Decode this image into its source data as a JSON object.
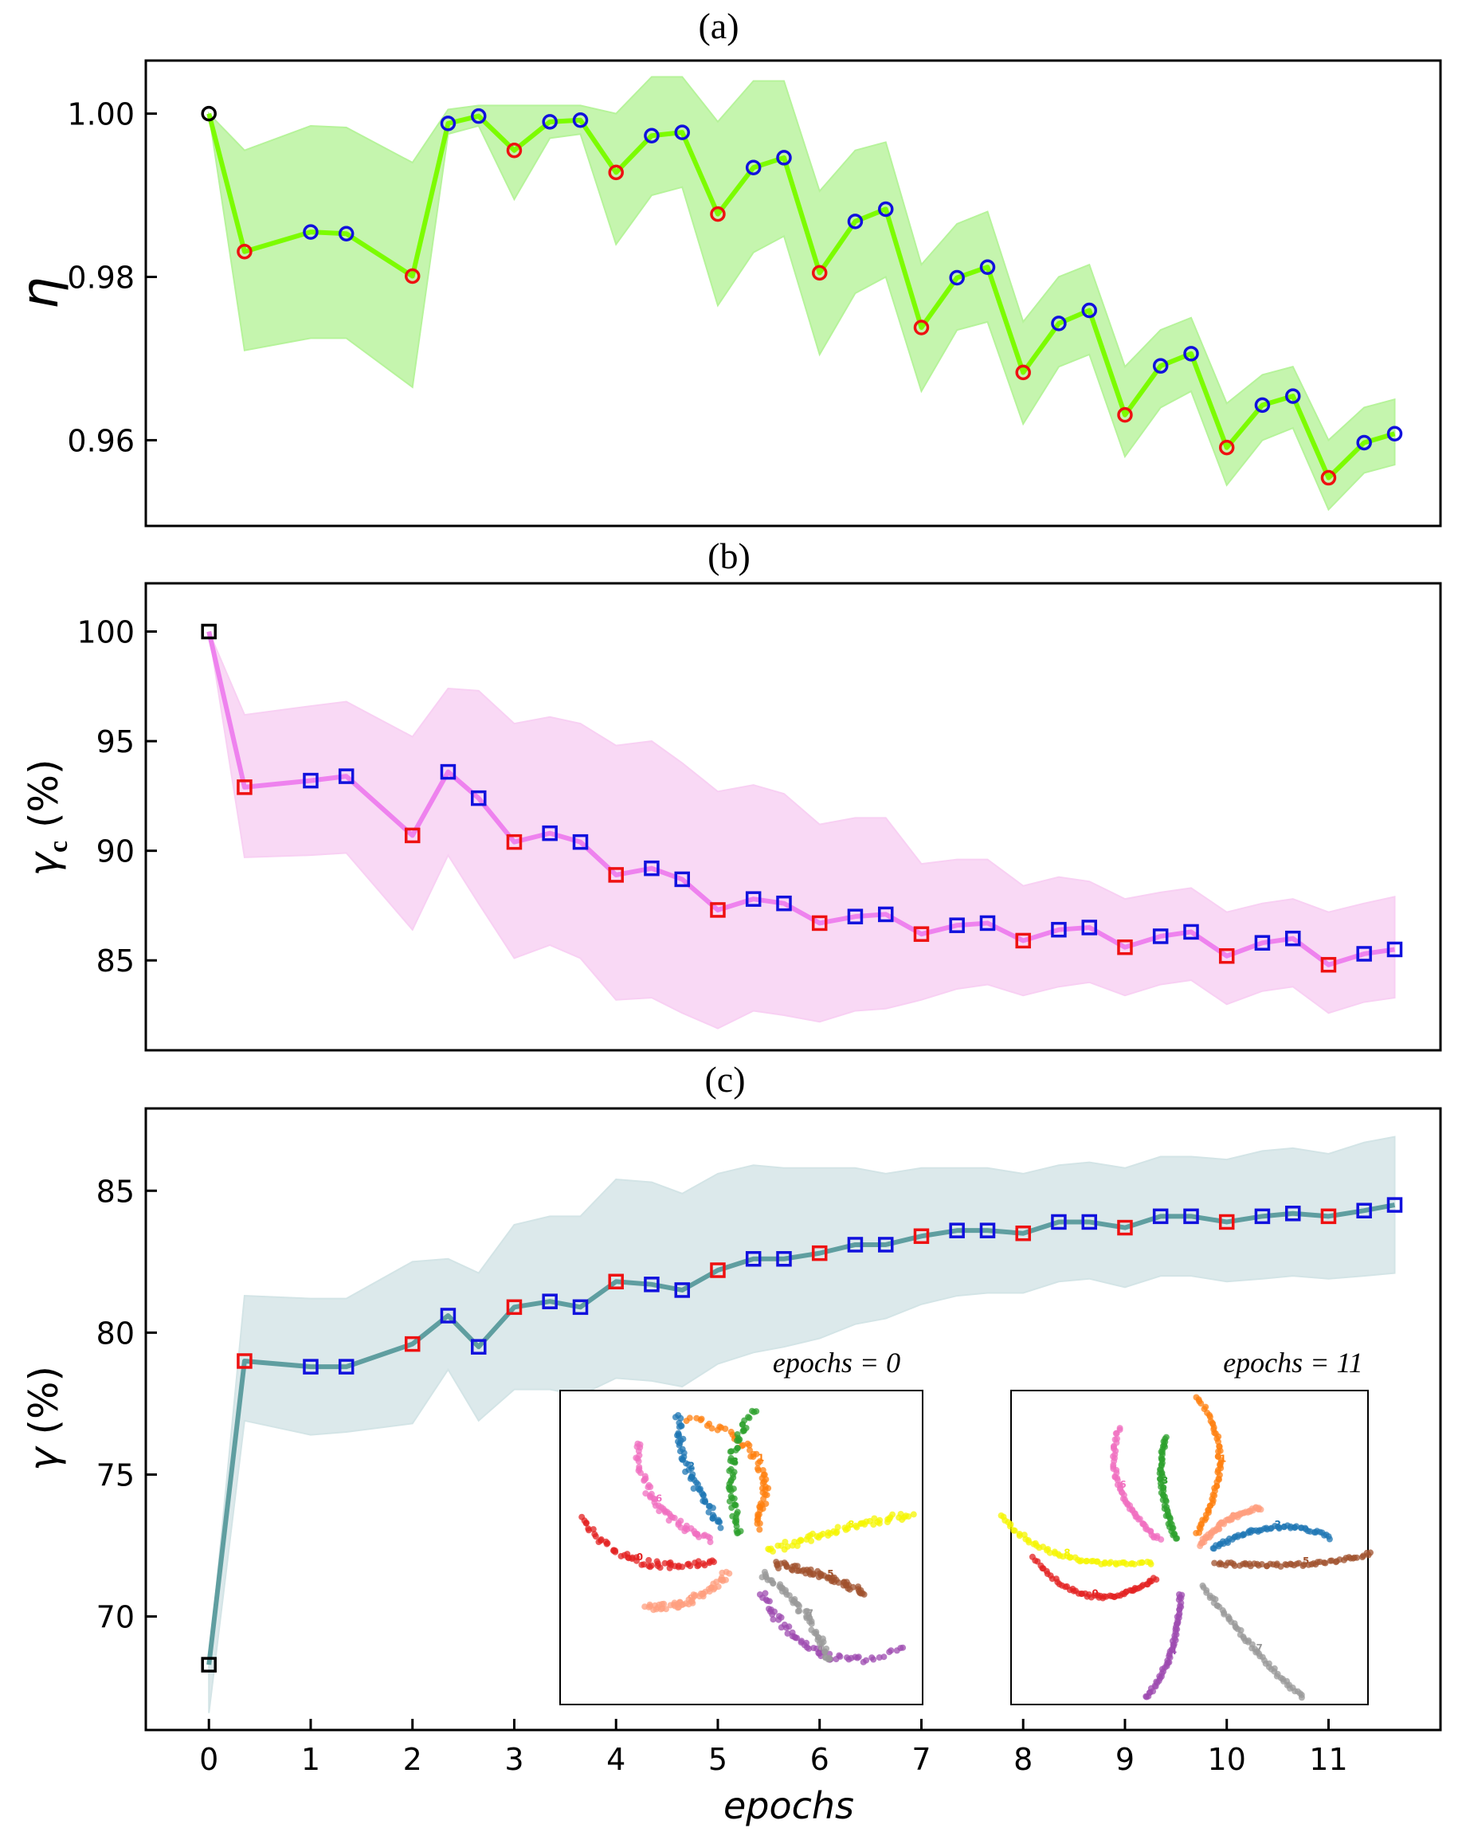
{
  "chart_data": [
    {
      "type": "line",
      "panel": "(a)",
      "ylabel": "η",
      "ylim": [
        0.9495,
        1.0065
      ],
      "yticks": [
        "0.96",
        "0.98",
        "1.00"
      ],
      "ytick_values": [
        0.96,
        0.98,
        1.0
      ],
      "line_color": "#7cfc00",
      "band_color": "#b6f39a",
      "x": [
        0,
        0.35,
        1.0,
        1.35,
        2.0,
        2.35,
        2.65,
        3.0,
        3.35,
        3.65,
        4.0,
        4.35,
        4.65,
        5.0,
        5.35,
        5.65,
        6.0,
        6.35,
        6.65,
        7.0,
        7.35,
        7.65,
        8.0,
        8.35,
        8.65,
        9.0,
        9.35,
        9.65,
        10.0,
        10.35,
        10.65,
        11.0,
        11.35,
        11.65
      ],
      "values": [
        1.0,
        0.9831,
        0.9855,
        0.9853,
        0.9801,
        0.9988,
        0.9997,
        0.9955,
        0.999,
        0.9992,
        0.9928,
        0.9973,
        0.9977,
        0.9877,
        0.9934,
        0.9946,
        0.9805,
        0.9868,
        0.9883,
        0.9738,
        0.9799,
        0.9812,
        0.9683,
        0.9743,
        0.9759,
        0.9631,
        0.9691,
        0.9706,
        0.9591,
        0.9643,
        0.9654,
        0.9554,
        0.9597,
        0.9608
      ],
      "upper": [
        1.0,
        0.9955,
        0.9985,
        0.9983,
        0.994,
        1.0005,
        1.001,
        1.001,
        1.001,
        1.001,
        1.0,
        1.0045,
        1.0045,
        0.999,
        1.004,
        1.004,
        0.9905,
        0.9955,
        0.9965,
        0.9815,
        0.9865,
        0.988,
        0.9745,
        0.98,
        0.9815,
        0.969,
        0.9735,
        0.975,
        0.9645,
        0.968,
        0.969,
        0.96,
        0.964,
        0.965
      ],
      "lower": [
        1.0,
        0.971,
        0.9725,
        0.9725,
        0.9665,
        0.9975,
        0.9985,
        0.9895,
        0.997,
        0.9975,
        0.984,
        0.99,
        0.991,
        0.9765,
        0.983,
        0.985,
        0.9705,
        0.978,
        0.98,
        0.966,
        0.9735,
        0.9745,
        0.962,
        0.969,
        0.9705,
        0.958,
        0.964,
        0.966,
        0.9545,
        0.96,
        0.9615,
        0.9515,
        0.956,
        0.957
      ],
      "marker": "circle",
      "marker_colors": [
        "black",
        "red",
        "blue",
        "blue",
        "red",
        "blue",
        "blue",
        "red",
        "blue",
        "blue",
        "red",
        "blue",
        "blue",
        "red",
        "blue",
        "blue",
        "red",
        "blue",
        "blue",
        "red",
        "blue",
        "blue",
        "red",
        "blue",
        "blue",
        "red",
        "blue",
        "blue",
        "red",
        "blue",
        "blue",
        "red",
        "blue",
        "blue"
      ]
    },
    {
      "type": "line",
      "panel": "(b)",
      "ylabel_main": "γ",
      "ylabel_sub": "c",
      "ylabel_unit": "(%)",
      "ylim": [
        80.9,
        102.2
      ],
      "yticks": [
        "85",
        "90",
        "95",
        "100"
      ],
      "ytick_values": [
        85,
        90,
        95,
        100
      ],
      "line_color": "#ee82ee",
      "band_color": "#f8d0f3",
      "x": [
        0,
        0.35,
        1.0,
        1.35,
        2.0,
        2.35,
        2.65,
        3.0,
        3.35,
        3.65,
        4.0,
        4.35,
        4.65,
        5.0,
        5.35,
        5.65,
        6.0,
        6.35,
        6.65,
        7.0,
        7.35,
        7.65,
        8.0,
        8.35,
        8.65,
        9.0,
        9.35,
        9.65,
        10.0,
        10.35,
        10.65,
        11.0,
        11.35,
        11.65
      ],
      "values": [
        100.0,
        92.9,
        93.2,
        93.4,
        90.7,
        93.6,
        92.4,
        90.4,
        90.8,
        90.4,
        88.9,
        89.2,
        88.7,
        87.3,
        87.8,
        87.6,
        86.7,
        87.0,
        87.1,
        86.2,
        86.6,
        86.7,
        85.9,
        86.4,
        86.5,
        85.6,
        86.1,
        86.3,
        85.2,
        85.8,
        86.0,
        84.8,
        85.3,
        85.5
      ],
      "upper": [
        100.0,
        96.2,
        96.6,
        96.8,
        95.2,
        97.4,
        97.3,
        95.8,
        96.1,
        95.8,
        94.8,
        95.0,
        94.0,
        92.7,
        93.0,
        92.6,
        91.2,
        91.5,
        91.5,
        89.4,
        89.6,
        89.6,
        88.4,
        88.8,
        88.6,
        87.8,
        88.1,
        88.3,
        87.2,
        87.6,
        87.8,
        87.2,
        87.6,
        87.9
      ],
      "lower": [
        100.0,
        89.7,
        89.8,
        89.9,
        86.4,
        89.8,
        87.6,
        85.1,
        85.7,
        85.1,
        83.2,
        83.3,
        82.6,
        81.9,
        82.7,
        82.5,
        82.2,
        82.7,
        82.8,
        83.2,
        83.7,
        83.9,
        83.4,
        83.8,
        84.0,
        83.4,
        83.9,
        84.1,
        83.0,
        83.6,
        83.8,
        82.6,
        83.1,
        83.3
      ],
      "marker": "square",
      "marker_colors": [
        "black",
        "red",
        "blue",
        "blue",
        "red",
        "blue",
        "blue",
        "red",
        "blue",
        "blue",
        "red",
        "blue",
        "blue",
        "red",
        "blue",
        "blue",
        "red",
        "blue",
        "blue",
        "red",
        "blue",
        "blue",
        "red",
        "blue",
        "blue",
        "red",
        "blue",
        "blue",
        "red",
        "blue",
        "blue",
        "red",
        "blue",
        "blue"
      ]
    },
    {
      "type": "line",
      "panel": "(c)",
      "ylabel_main": "γ",
      "ylabel_unit": "(%)",
      "xlabel": "epochs",
      "xlim": [
        -0.62,
        12.1
      ],
      "xticks": [
        "0",
        "1",
        "2",
        "3",
        "4",
        "5",
        "6",
        "7",
        "8",
        "9",
        "10",
        "11"
      ],
      "xtick_values": [
        0,
        1,
        2,
        3,
        4,
        5,
        6,
        7,
        8,
        9,
        10,
        11
      ],
      "ylim": [
        66.0,
        87.9
      ],
      "yticks": [
        "70",
        "75",
        "80",
        "85"
      ],
      "ytick_values": [
        70,
        75,
        80,
        85
      ],
      "line_color": "#5f9ea0",
      "band_color": "#d3e4e6",
      "x": [
        0,
        0.35,
        1.0,
        1.35,
        2.0,
        2.35,
        2.65,
        3.0,
        3.35,
        3.65,
        4.0,
        4.35,
        4.65,
        5.0,
        5.35,
        5.65,
        6.0,
        6.35,
        6.65,
        7.0,
        7.35,
        7.65,
        8.0,
        8.35,
        8.65,
        9.0,
        9.35,
        9.65,
        10.0,
        10.35,
        10.65,
        11.0,
        11.35,
        11.65
      ],
      "values": [
        68.3,
        79.0,
        78.8,
        78.8,
        79.6,
        80.6,
        79.5,
        80.9,
        81.1,
        80.9,
        81.8,
        81.7,
        81.5,
        82.2,
        82.6,
        82.6,
        82.8,
        83.1,
        83.1,
        83.4,
        83.6,
        83.6,
        83.5,
        83.9,
        83.9,
        83.7,
        84.1,
        84.1,
        83.9,
        84.1,
        84.2,
        84.1,
        84.3,
        84.5
      ],
      "upper": [
        68.3,
        81.3,
        81.2,
        81.2,
        82.5,
        82.6,
        82.1,
        83.8,
        84.1,
        84.1,
        85.4,
        85.3,
        84.9,
        85.6,
        85.9,
        85.8,
        85.8,
        85.8,
        85.6,
        85.8,
        85.8,
        85.8,
        85.6,
        85.9,
        86.0,
        85.8,
        86.2,
        86.2,
        86.1,
        86.4,
        86.5,
        86.3,
        86.7,
        86.9
      ],
      "lower": [
        66.6,
        76.9,
        76.4,
        76.5,
        76.8,
        78.7,
        76.9,
        78.0,
        78.0,
        77.8,
        78.4,
        78.3,
        78.1,
        78.9,
        79.3,
        79.5,
        79.8,
        80.3,
        80.5,
        81.0,
        81.3,
        81.4,
        81.4,
        81.8,
        81.9,
        81.6,
        82.0,
        82.0,
        81.8,
        81.9,
        82.0,
        81.9,
        82.0,
        82.1
      ],
      "marker": "square",
      "marker_colors": [
        "black",
        "red",
        "blue",
        "blue",
        "red",
        "blue",
        "blue",
        "red",
        "blue",
        "blue",
        "red",
        "blue",
        "blue",
        "red",
        "blue",
        "blue",
        "red",
        "blue",
        "blue",
        "red",
        "blue",
        "blue",
        "red",
        "blue",
        "blue",
        "red",
        "blue",
        "blue",
        "red",
        "blue",
        "blue",
        "red",
        "blue",
        "blue"
      ],
      "insets": [
        {
          "title": "epochs = 0",
          "digit_labels": [
            "0",
            "1",
            "2",
            "3",
            "4",
            "5",
            "6",
            "7",
            "8",
            "9"
          ]
        },
        {
          "title": "epochs = 11",
          "digit_labels": [
            "0",
            "1",
            "2",
            "3",
            "4",
            "5",
            "6",
            "7",
            "8",
            "9"
          ]
        }
      ]
    }
  ],
  "inset_palette": [
    "#e32222",
    "#ff7f0e",
    "#1f77b4",
    "#2ca02c",
    "#9e4bb0",
    "#a0522d",
    "#f06fc0",
    "#999999",
    "#f5f500",
    "#ff9f7f"
  ]
}
